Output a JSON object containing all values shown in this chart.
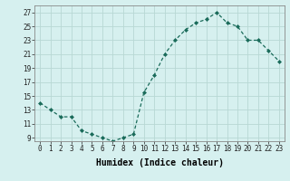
{
  "x": [
    0,
    1,
    2,
    3,
    4,
    5,
    6,
    7,
    8,
    9,
    10,
    11,
    12,
    13,
    14,
    15,
    16,
    17,
    18,
    19,
    20,
    21,
    22,
    23
  ],
  "y": [
    14.0,
    13.0,
    12.0,
    12.0,
    10.0,
    9.5,
    9.0,
    8.5,
    9.0,
    9.5,
    15.5,
    18.0,
    21.0,
    23.0,
    24.5,
    25.5,
    26.0,
    27.0,
    25.5,
    25.0,
    23.0,
    23.0,
    21.5,
    20.0
  ],
  "line_color": "#1a6b5a",
  "marker": "D",
  "marker_size": 2.0,
  "background_color": "#d6f0ef",
  "grid_color": "#b8d8d4",
  "xlabel": "Humidex (Indice chaleur)",
  "xlim": [
    -0.5,
    23.5
  ],
  "ylim": [
    8.5,
    28
  ],
  "yticks": [
    9,
    11,
    13,
    15,
    17,
    19,
    21,
    23,
    25,
    27
  ],
  "xtick_labels": [
    "0",
    "1",
    "2",
    "3",
    "4",
    "5",
    "6",
    "7",
    "8",
    "9",
    "10",
    "11",
    "12",
    "13",
    "14",
    "15",
    "16",
    "17",
    "18",
    "19",
    "20",
    "21",
    "22",
    "23"
  ],
  "tick_fontsize": 5.5,
  "xlabel_fontsize": 7
}
